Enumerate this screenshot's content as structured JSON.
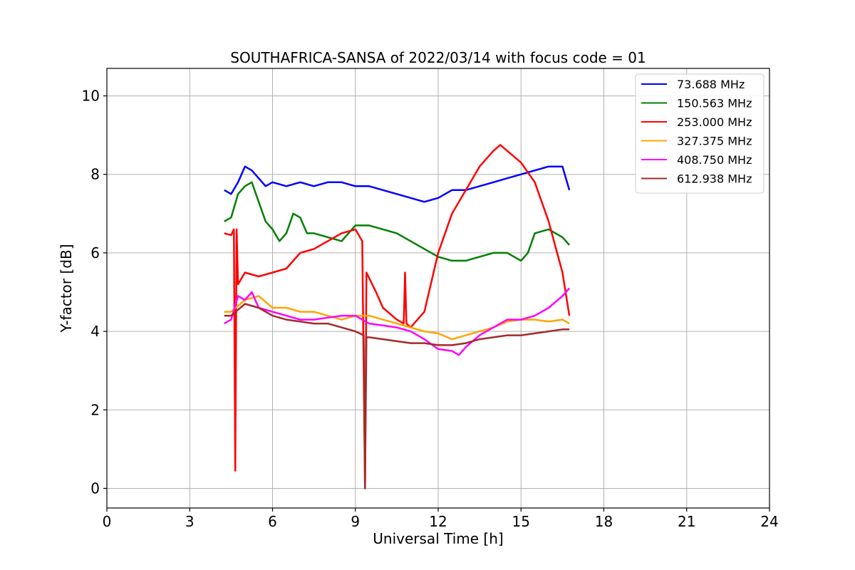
{
  "chart_data": {
    "type": "line",
    "title": "SOUTHAFRICA-SANSA of 2022/03/14 with focus code = 01",
    "xlabel": "Universal Time [h]",
    "ylabel": "Y-factor [dB]",
    "xlim": [
      0,
      24
    ],
    "ylim": [
      -0.5,
      10.7
    ],
    "xticks": [
      0,
      3,
      6,
      9,
      12,
      15,
      18,
      21,
      24
    ],
    "yticks": [
      0,
      2,
      4,
      6,
      8,
      10
    ],
    "grid": true,
    "legend_position": "top-right",
    "series": [
      {
        "name": " 73.688 MHz",
        "color": "#0000ff",
        "points": [
          [
            4.25,
            7.6
          ],
          [
            4.5,
            7.5
          ],
          [
            4.75,
            7.8
          ],
          [
            5.0,
            8.2
          ],
          [
            5.25,
            8.1
          ],
          [
            5.5,
            7.9
          ],
          [
            5.75,
            7.7
          ],
          [
            6.0,
            7.8
          ],
          [
            6.5,
            7.7
          ],
          [
            7.0,
            7.8
          ],
          [
            7.5,
            7.7
          ],
          [
            8.0,
            7.8
          ],
          [
            8.5,
            7.8
          ],
          [
            9.0,
            7.7
          ],
          [
            9.5,
            7.7
          ],
          [
            10.0,
            7.6
          ],
          [
            10.5,
            7.5
          ],
          [
            11.0,
            7.4
          ],
          [
            11.5,
            7.3
          ],
          [
            12.0,
            7.4
          ],
          [
            12.5,
            7.6
          ],
          [
            13.0,
            7.6
          ],
          [
            13.5,
            7.7
          ],
          [
            14.0,
            7.8
          ],
          [
            14.5,
            7.9
          ],
          [
            15.0,
            8.0
          ],
          [
            15.5,
            8.1
          ],
          [
            16.0,
            8.2
          ],
          [
            16.5,
            8.2
          ],
          [
            16.75,
            7.6
          ]
        ]
      },
      {
        "name": "150.563 MHz",
        "color": "#008000",
        "points": [
          [
            4.25,
            6.8
          ],
          [
            4.5,
            6.9
          ],
          [
            4.75,
            7.5
          ],
          [
            5.0,
            7.7
          ],
          [
            5.25,
            7.8
          ],
          [
            5.5,
            7.3
          ],
          [
            5.75,
            6.8
          ],
          [
            6.0,
            6.6
          ],
          [
            6.25,
            6.3
          ],
          [
            6.5,
            6.5
          ],
          [
            6.75,
            7.0
          ],
          [
            7.0,
            6.9
          ],
          [
            7.25,
            6.5
          ],
          [
            7.5,
            6.5
          ],
          [
            8.0,
            6.4
          ],
          [
            8.5,
            6.3
          ],
          [
            9.0,
            6.7
          ],
          [
            9.5,
            6.7
          ],
          [
            10.0,
            6.6
          ],
          [
            10.5,
            6.5
          ],
          [
            11.0,
            6.3
          ],
          [
            11.5,
            6.1
          ],
          [
            12.0,
            5.9
          ],
          [
            12.5,
            5.8
          ],
          [
            13.0,
            5.8
          ],
          [
            13.5,
            5.9
          ],
          [
            14.0,
            6.0
          ],
          [
            14.5,
            6.0
          ],
          [
            15.0,
            5.8
          ],
          [
            15.25,
            6.0
          ],
          [
            15.5,
            6.5
          ],
          [
            16.0,
            6.6
          ],
          [
            16.5,
            6.4
          ],
          [
            16.75,
            6.2
          ]
        ]
      },
      {
        "name": "253.000 MHz",
        "color": "#ff0000",
        "points": [
          [
            4.25,
            6.5
          ],
          [
            4.5,
            6.45
          ],
          [
            4.6,
            6.6
          ],
          [
            4.65,
            0.45
          ],
          [
            4.7,
            6.6
          ],
          [
            4.75,
            5.2
          ],
          [
            5.0,
            5.5
          ],
          [
            5.5,
            5.4
          ],
          [
            6.0,
            5.5
          ],
          [
            6.5,
            5.6
          ],
          [
            7.0,
            6.0
          ],
          [
            7.5,
            6.1
          ],
          [
            8.0,
            6.3
          ],
          [
            8.5,
            6.5
          ],
          [
            9.0,
            6.6
          ],
          [
            9.25,
            6.3
          ],
          [
            9.35,
            0.0
          ],
          [
            9.4,
            5.5
          ],
          [
            9.75,
            5.0
          ],
          [
            10.0,
            4.6
          ],
          [
            10.5,
            4.3
          ],
          [
            10.75,
            4.2
          ],
          [
            10.8,
            5.5
          ],
          [
            10.85,
            4.2
          ],
          [
            11.0,
            4.1
          ],
          [
            11.5,
            4.5
          ],
          [
            12.0,
            6.0
          ],
          [
            12.5,
            7.0
          ],
          [
            13.0,
            7.6
          ],
          [
            13.5,
            8.2
          ],
          [
            14.0,
            8.6
          ],
          [
            14.25,
            8.75
          ],
          [
            14.5,
            8.6
          ],
          [
            15.0,
            8.3
          ],
          [
            15.5,
            7.8
          ],
          [
            16.0,
            6.8
          ],
          [
            16.5,
            5.5
          ],
          [
            16.75,
            4.4
          ]
        ]
      },
      {
        "name": "327.375 MHz",
        "color": "#ffa500",
        "points": [
          [
            4.25,
            4.5
          ],
          [
            4.5,
            4.5
          ],
          [
            5.0,
            4.8
          ],
          [
            5.5,
            4.9
          ],
          [
            6.0,
            4.6
          ],
          [
            6.5,
            4.6
          ],
          [
            7.0,
            4.5
          ],
          [
            7.5,
            4.5
          ],
          [
            8.0,
            4.4
          ],
          [
            8.5,
            4.3
          ],
          [
            9.0,
            4.4
          ],
          [
            9.5,
            4.4
          ],
          [
            10.0,
            4.3
          ],
          [
            10.5,
            4.2
          ],
          [
            11.0,
            4.1
          ],
          [
            11.5,
            4.0
          ],
          [
            12.0,
            3.95
          ],
          [
            12.5,
            3.8
          ],
          [
            13.0,
            3.9
          ],
          [
            13.5,
            4.0
          ],
          [
            14.0,
            4.1
          ],
          [
            14.5,
            4.25
          ],
          [
            15.0,
            4.3
          ],
          [
            15.5,
            4.3
          ],
          [
            16.0,
            4.25
          ],
          [
            16.5,
            4.3
          ],
          [
            16.75,
            4.2
          ]
        ]
      },
      {
        "name": "408.750 MHz",
        "color": "#ff00ff",
        "points": [
          [
            4.25,
            4.2
          ],
          [
            4.5,
            4.3
          ],
          [
            4.75,
            4.9
          ],
          [
            5.0,
            4.8
          ],
          [
            5.25,
            5.0
          ],
          [
            5.5,
            4.6
          ],
          [
            6.0,
            4.5
          ],
          [
            6.5,
            4.4
          ],
          [
            7.0,
            4.3
          ],
          [
            7.5,
            4.3
          ],
          [
            8.0,
            4.35
          ],
          [
            8.5,
            4.4
          ],
          [
            9.0,
            4.4
          ],
          [
            9.5,
            4.2
          ],
          [
            10.0,
            4.15
          ],
          [
            10.5,
            4.1
          ],
          [
            11.0,
            4.0
          ],
          [
            11.5,
            3.8
          ],
          [
            12.0,
            3.55
          ],
          [
            12.5,
            3.5
          ],
          [
            12.75,
            3.4
          ],
          [
            13.0,
            3.6
          ],
          [
            13.5,
            3.9
          ],
          [
            14.0,
            4.1
          ],
          [
            14.5,
            4.3
          ],
          [
            15.0,
            4.3
          ],
          [
            15.5,
            4.4
          ],
          [
            16.0,
            4.6
          ],
          [
            16.5,
            4.9
          ],
          [
            16.75,
            5.1
          ]
        ]
      },
      {
        "name": "612.938 MHz",
        "color": "#a52a2a",
        "points": [
          [
            4.25,
            4.4
          ],
          [
            4.5,
            4.4
          ],
          [
            5.0,
            4.7
          ],
          [
            5.5,
            4.6
          ],
          [
            6.0,
            4.4
          ],
          [
            6.5,
            4.3
          ],
          [
            7.0,
            4.25
          ],
          [
            7.5,
            4.2
          ],
          [
            8.0,
            4.2
          ],
          [
            8.5,
            4.1
          ],
          [
            9.0,
            4.0
          ],
          [
            9.3,
            3.9
          ],
          [
            9.35,
            0.0
          ],
          [
            9.4,
            3.85
          ],
          [
            9.5,
            3.85
          ],
          [
            10.0,
            3.8
          ],
          [
            10.5,
            3.75
          ],
          [
            11.0,
            3.7
          ],
          [
            11.5,
            3.7
          ],
          [
            12.0,
            3.65
          ],
          [
            12.5,
            3.65
          ],
          [
            13.0,
            3.7
          ],
          [
            13.5,
            3.8
          ],
          [
            14.0,
            3.85
          ],
          [
            14.5,
            3.9
          ],
          [
            15.0,
            3.9
          ],
          [
            15.5,
            3.95
          ],
          [
            16.0,
            4.0
          ],
          [
            16.5,
            4.05
          ],
          [
            16.75,
            4.05
          ]
        ]
      }
    ]
  }
}
